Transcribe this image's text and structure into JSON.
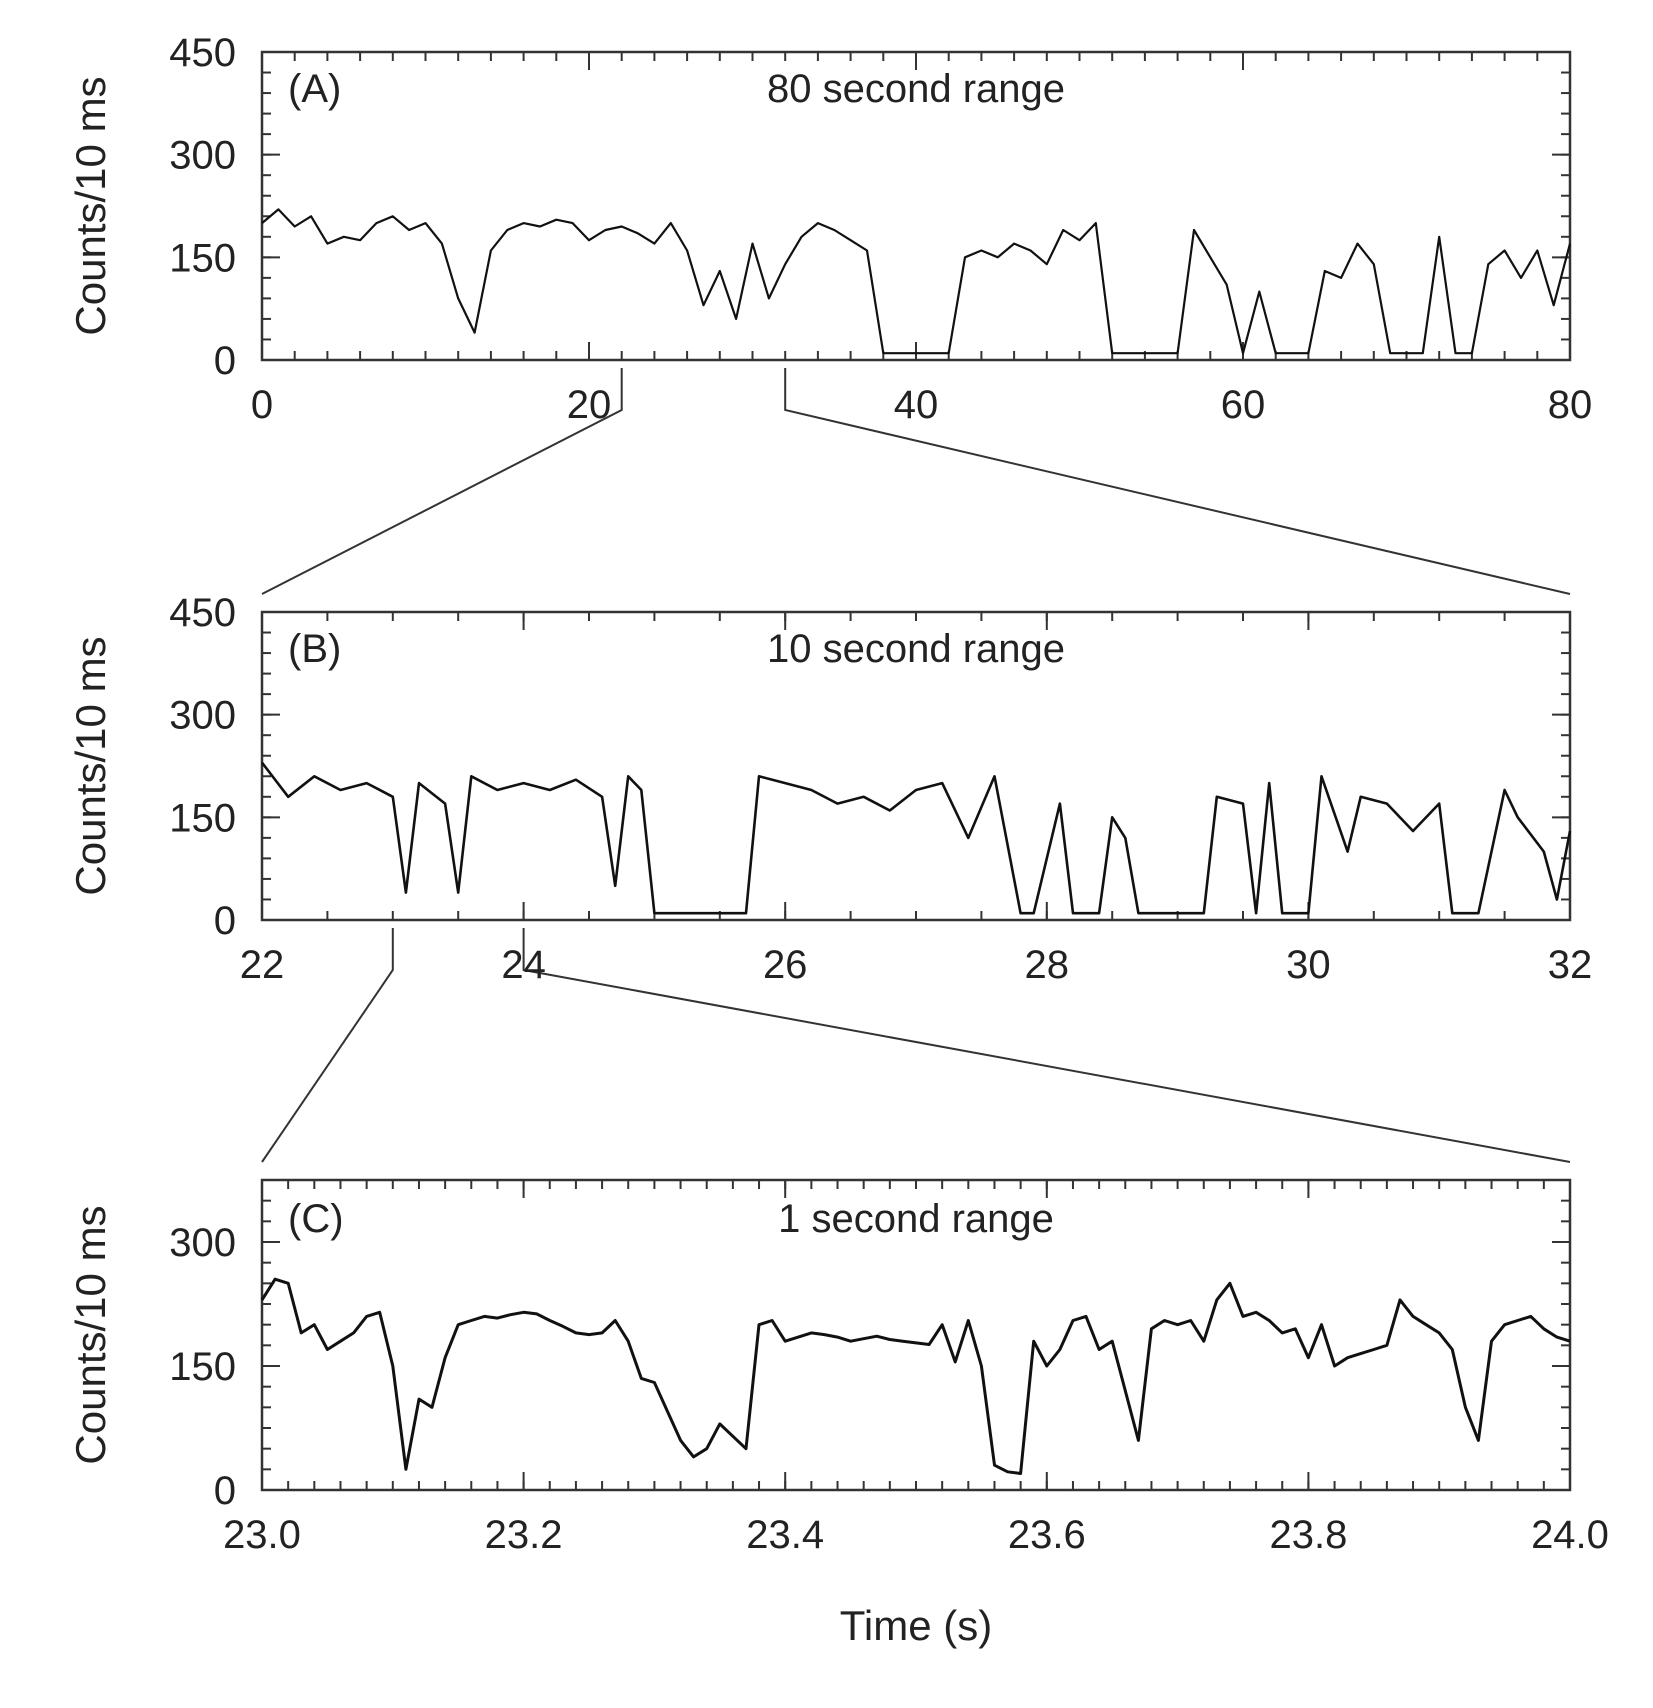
{
  "chart_data": [
    {
      "type": "line",
      "panel_letter": "(A)",
      "title": "80 second range",
      "xlabel": "",
      "ylabel": "Counts/10 ms",
      "xlim": [
        0,
        80
      ],
      "ylim": [
        0,
        450
      ],
      "xticks": [
        0,
        20,
        40,
        60,
        80
      ],
      "yticks": [
        0,
        150,
        300,
        450
      ],
      "series": [
        {
          "x": [
            0,
            1,
            2,
            3,
            4,
            5,
            6,
            7,
            8,
            9,
            10,
            11,
            12,
            13,
            14,
            15,
            16,
            17,
            18,
            19,
            20,
            21,
            22,
            23,
            24,
            25,
            26,
            27,
            28,
            29,
            30,
            31,
            32,
            33,
            34,
            35,
            36,
            37,
            38,
            39,
            40,
            41,
            42,
            43,
            44,
            45,
            46,
            47,
            48,
            49,
            50,
            51,
            52,
            53,
            54,
            55,
            56,
            57,
            58,
            59,
            60,
            61,
            62,
            63,
            64,
            65,
            66,
            67,
            68,
            69,
            70,
            71,
            72,
            73,
            74,
            75,
            76,
            77,
            78,
            79,
            80
          ],
          "y": [
            200,
            220,
            195,
            210,
            170,
            180,
            175,
            200,
            210,
            190,
            200,
            170,
            90,
            40,
            160,
            190,
            200,
            195,
            205,
            200,
            175,
            190,
            195,
            185,
            170,
            200,
            160,
            80,
            130,
            60,
            170,
            90,
            140,
            180,
            200,
            190,
            175,
            160,
            10,
            10,
            10,
            10,
            10,
            150,
            160,
            150,
            170,
            160,
            140,
            190,
            175,
            200,
            10,
            10,
            10,
            10,
            10,
            190,
            150,
            110,
            10,
            100,
            10,
            10,
            10,
            130,
            120,
            170,
            140,
            10,
            10,
            10,
            180,
            10,
            10,
            140,
            160,
            120,
            160,
            80,
            170
          ]
        }
      ]
    },
    {
      "type": "line",
      "panel_letter": "(B)",
      "title": "10 second range",
      "xlabel": "",
      "ylabel": "Counts/10 ms",
      "xlim": [
        22,
        32
      ],
      "ylim": [
        0,
        450
      ],
      "xticks": [
        22,
        24,
        26,
        28,
        30,
        32
      ],
      "yticks": [
        0,
        150,
        300,
        450
      ],
      "series": [
        {
          "x": [
            22.0,
            22.2,
            22.4,
            22.6,
            22.8,
            23.0,
            23.1,
            23.2,
            23.4,
            23.5,
            23.6,
            23.8,
            24.0,
            24.2,
            24.4,
            24.6,
            24.7,
            24.8,
            24.9,
            25.0,
            25.5,
            25.7,
            25.8,
            26.0,
            26.2,
            26.4,
            26.6,
            26.8,
            27.0,
            27.2,
            27.4,
            27.6,
            27.8,
            27.9,
            28.1,
            28.2,
            28.3,
            28.4,
            28.5,
            28.6,
            28.7,
            28.8,
            29.2,
            29.3,
            29.5,
            29.6,
            29.7,
            29.8,
            30.0,
            30.1,
            30.3,
            30.4,
            30.6,
            30.8,
            31.0,
            31.1,
            31.3,
            31.5,
            31.6,
            31.8,
            31.9,
            32.0
          ],
          "y": [
            230,
            180,
            210,
            190,
            200,
            180,
            40,
            200,
            170,
            40,
            210,
            190,
            200,
            190,
            205,
            180,
            50,
            210,
            190,
            10,
            10,
            10,
            210,
            200,
            190,
            170,
            180,
            160,
            190,
            200,
            120,
            210,
            10,
            10,
            170,
            10,
            10,
            10,
            150,
            120,
            10,
            10,
            10,
            180,
            170,
            10,
            200,
            10,
            10,
            210,
            100,
            180,
            170,
            130,
            170,
            10,
            10,
            190,
            150,
            100,
            30,
            130
          ]
        }
      ]
    },
    {
      "type": "line",
      "panel_letter": "(C)",
      "title": "1 second range",
      "xlabel": "Time (s)",
      "ylabel": "Counts/10 ms",
      "xlim": [
        23.0,
        24.0
      ],
      "ylim": [
        0,
        375
      ],
      "xticks": [
        23.0,
        23.2,
        23.4,
        23.6,
        23.8,
        24.0
      ],
      "yticks": [
        0,
        150,
        300
      ],
      "series": [
        {
          "x": [
            23.0,
            23.01,
            23.02,
            23.03,
            23.04,
            23.05,
            23.06,
            23.07,
            23.08,
            23.09,
            23.1,
            23.11,
            23.12,
            23.13,
            23.14,
            23.15,
            23.16,
            23.17,
            23.18,
            23.19,
            23.2,
            23.21,
            23.22,
            23.23,
            23.24,
            23.25,
            23.26,
            23.27,
            23.28,
            23.29,
            23.3,
            23.31,
            23.32,
            23.33,
            23.34,
            23.35,
            23.36,
            23.37,
            23.38,
            23.39,
            23.4,
            23.41,
            23.42,
            23.43,
            23.44,
            23.45,
            23.46,
            23.47,
            23.48,
            23.49,
            23.5,
            23.51,
            23.52,
            23.53,
            23.54,
            23.55,
            23.56,
            23.57,
            23.58,
            23.59,
            23.6,
            23.61,
            23.62,
            23.63,
            23.64,
            23.65,
            23.66,
            23.67,
            23.68,
            23.69,
            23.7,
            23.71,
            23.72,
            23.73,
            23.74,
            23.75,
            23.76,
            23.77,
            23.78,
            23.79,
            23.8,
            23.81,
            23.82,
            23.83,
            23.84,
            23.85,
            23.86,
            23.87,
            23.88,
            23.89,
            23.9,
            23.91,
            23.92,
            23.93,
            23.94,
            23.95,
            23.96,
            23.97,
            23.98,
            23.99,
            24.0
          ],
          "y": [
            230,
            255,
            250,
            190,
            200,
            170,
            180,
            190,
            210,
            215,
            150,
            25,
            110,
            100,
            160,
            200,
            205,
            210,
            208,
            212,
            215,
            213,
            205,
            198,
            190,
            188,
            190,
            205,
            180,
            135,
            130,
            95,
            60,
            40,
            50,
            80,
            65,
            50,
            200,
            205,
            180,
            185,
            190,
            188,
            185,
            180,
            183,
            186,
            182,
            180,
            178,
            176,
            200,
            155,
            205,
            150,
            30,
            22,
            20,
            180,
            150,
            170,
            205,
            210,
            170,
            180,
            120,
            60,
            195,
            205,
            200,
            205,
            180,
            230,
            250,
            210,
            215,
            205,
            190,
            195,
            160,
            200,
            150,
            160,
            165,
            170,
            175,
            230,
            210,
            200,
            190,
            170,
            100,
            60,
            180,
            200,
            205,
            210,
            195,
            185,
            180
          ]
        }
      ]
    }
  ]
}
